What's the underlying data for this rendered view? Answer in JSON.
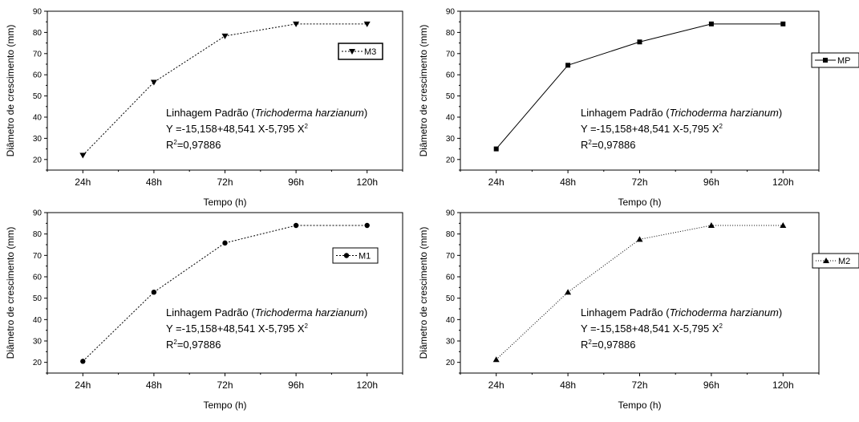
{
  "chart_data": [
    {
      "type": "line",
      "categories": [
        "24h",
        "48h",
        "72h",
        "96h",
        "120h"
      ],
      "series": [
        {
          "name": "M3",
          "values": [
            22,
            56.5,
            78.3,
            84,
            84
          ],
          "marker": "triangle-down",
          "dash": "2,2"
        }
      ],
      "xlabel": "Tempo (h)",
      "ylabel": "Diâmetro de crescimento (mm)",
      "ylim": [
        15,
        90
      ],
      "yticks": [
        20,
        30,
        40,
        50,
        60,
        70,
        80,
        90
      ],
      "annotation": {
        "line1_prefix": "Linhagem Padrão (",
        "line1_italic": "Trichoderma harzianum",
        "line1_suffix": ")",
        "line2": "Y =-15,158+48,541 X-5,795 X",
        "line2_sup": "2",
        "line3_a": "R",
        "line3_sup": "2",
        "line3_b": "=0,97886"
      },
      "legend_position": "right"
    },
    {
      "type": "line",
      "categories": [
        "24h",
        "48h",
        "72h",
        "96h",
        "120h"
      ],
      "series": [
        {
          "name": "MP",
          "values": [
            25,
            64.5,
            75.5,
            84,
            84
          ],
          "marker": "square",
          "dash": ""
        }
      ],
      "xlabel": "Tempo (h)",
      "ylabel": "Diâmetro de crescimento (mm)",
      "ylim": [
        15,
        90
      ],
      "yticks": [
        20,
        30,
        40,
        50,
        60,
        70,
        80,
        90
      ],
      "annotation": {
        "line1_prefix": "Linhagem Padrão (",
        "line1_italic": "Trichoderma harzianum",
        "line1_suffix": ")",
        "line2": "Y =-15,158+48,541 X-5,795 X",
        "line2_sup": "2",
        "line3_a": "R",
        "line3_sup": "2",
        "line3_b": "=0,97886"
      },
      "legend_position": "outside-right"
    },
    {
      "type": "line",
      "categories": [
        "24h",
        "48h",
        "72h",
        "96h",
        "120h"
      ],
      "series": [
        {
          "name": "M1",
          "values": [
            20.5,
            52.8,
            75.8,
            84,
            84
          ],
          "marker": "circle",
          "dash": "2,2"
        }
      ],
      "xlabel": "Tempo (h)",
      "ylabel": "Diâmetro de crescimento (mm)",
      "ylim": [
        15,
        90
      ],
      "yticks": [
        20,
        30,
        40,
        50,
        60,
        70,
        80,
        90
      ],
      "annotation": {
        "line1_prefix": "Linhagem Padrão (",
        "line1_italic": "Trichoderma harzianum",
        "line1_suffix": ")",
        "line2": "Y =-15,158+48,541 X-5,795 X",
        "line2_sup": "2",
        "line3_a": "R",
        "line3_sup": "2",
        "line3_b": "=0,97886"
      },
      "legend_position": "right"
    },
    {
      "type": "line",
      "categories": [
        "24h",
        "48h",
        "72h",
        "96h",
        "120h"
      ],
      "series": [
        {
          "name": "M2",
          "values": [
            21.3,
            52.8,
            77.5,
            84,
            84
          ],
          "marker": "triangle-up",
          "dash": "1,2"
        }
      ],
      "xlabel": "Tempo (h)",
      "ylabel": "Diâmetro de crescimento (mm)",
      "ylim": [
        15,
        90
      ],
      "yticks": [
        20,
        30,
        40,
        50,
        60,
        70,
        80,
        90
      ],
      "annotation": {
        "line1_prefix": "Linhagem Padrão (",
        "line1_italic": "Trichoderma harzianum",
        "line1_suffix": ")",
        "line2": "Y =-15,158+48,541 X-5,795 X",
        "line2_sup": "2",
        "line3_a": "R",
        "line3_sup": "2",
        "line3_b": "=0,97886"
      },
      "legend_position": "outside-right"
    }
  ]
}
